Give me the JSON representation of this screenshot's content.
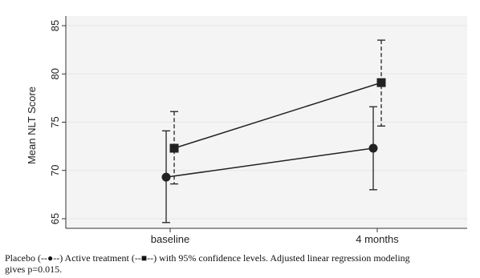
{
  "chart_data": {
    "type": "line",
    "categories": [
      "baseline",
      "4 months"
    ],
    "ylabel": "Mean NLT Score",
    "xlabel": "",
    "ylim": [
      64,
      86
    ],
    "yticks": [
      65,
      70,
      75,
      80,
      85
    ],
    "grid": true,
    "series": [
      {
        "marker": "circle",
        "errorbar_style": "solid",
        "values": [
          69.3,
          72.3
        ],
        "ci_low": [
          64.6,
          68.0
        ],
        "ci_high": [
          74.1,
          76.6
        ]
      },
      {
        "marker": "square",
        "errorbar_style": "dashed",
        "values": [
          72.3,
          79.1
        ],
        "ci_low": [
          68.6,
          74.6
        ],
        "ci_high": [
          76.1,
          83.5
        ]
      }
    ]
  },
  "caption": {
    "line1": "Placebo (--●--) Active treatment (--■--) with 95% confidence levels.  Adjusted linear regression modeling",
    "line2": "gives p=0.015."
  },
  "colors": {
    "plot_background": "#f4f4f4",
    "gridline": "#e6e6e6",
    "series": "#222222"
  }
}
